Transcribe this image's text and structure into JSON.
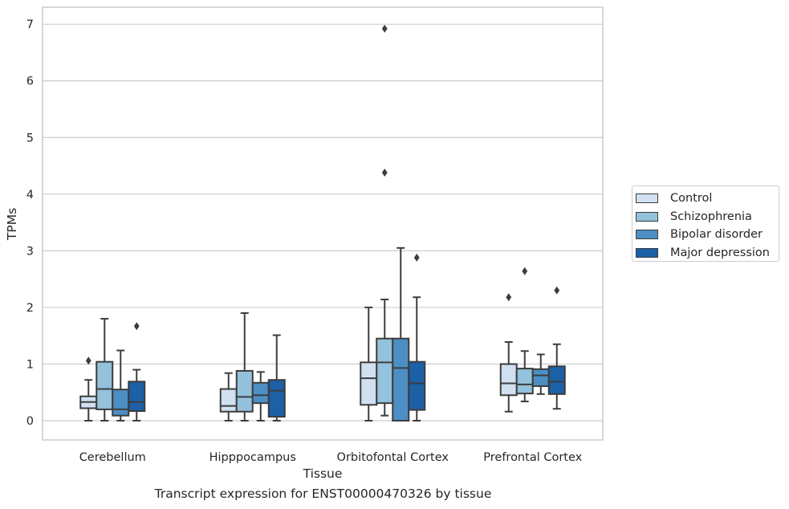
{
  "chart_data": {
    "type": "box",
    "title": "",
    "caption": "Transcript expression for ENST00000470326 by tissue",
    "xlabel": "Tissue",
    "ylabel": "TPMs",
    "ylim": [
      -0.34,
      7.3
    ],
    "yticks": [
      "0",
      "1",
      "2",
      "3",
      "4",
      "5",
      "6",
      "7"
    ],
    "grid": "horizontal",
    "legend_position": "right",
    "categories": [
      "Cerebellum",
      "Hipppocampus",
      "Orbitofontal Cortex",
      "Prefrontal Cortex"
    ],
    "series": [
      {
        "name": "Control",
        "color": "#d0e0f0",
        "boxes": [
          {
            "min": 0.0,
            "q1": 0.22,
            "median": 0.33,
            "q3": 0.43,
            "max": 0.72,
            "outliers": [
              1.06
            ]
          },
          {
            "min": 0.0,
            "q1": 0.16,
            "median": 0.26,
            "q3": 0.56,
            "max": 0.84,
            "outliers": []
          },
          {
            "min": 0.0,
            "q1": 0.28,
            "median": 0.75,
            "q3": 1.03,
            "max": 2.0,
            "outliers": []
          },
          {
            "min": 0.16,
            "q1": 0.45,
            "median": 0.66,
            "q3": 1.0,
            "max": 1.39,
            "outliers": [
              2.18
            ]
          }
        ]
      },
      {
        "name": "Schizophrenia",
        "color": "#94c1dc",
        "boxes": [
          {
            "min": 0.0,
            "q1": 0.2,
            "median": 0.56,
            "q3": 1.04,
            "max": 1.8,
            "outliers": []
          },
          {
            "min": 0.0,
            "q1": 0.16,
            "median": 0.42,
            "q3": 0.88,
            "max": 1.9,
            "outliers": []
          },
          {
            "min": 0.09,
            "q1": 0.31,
            "median": 1.03,
            "q3": 1.45,
            "max": 2.14,
            "outliers": [
              4.38,
              6.92
            ]
          },
          {
            "min": 0.34,
            "q1": 0.48,
            "median": 0.64,
            "q3": 0.92,
            "max": 1.23,
            "outliers": [
              2.64
            ]
          }
        ]
      },
      {
        "name": "Bipolar disorder",
        "color": "#4d8fc4",
        "boxes": [
          {
            "min": 0.0,
            "q1": 0.09,
            "median": 0.2,
            "q3": 0.55,
            "max": 1.24,
            "outliers": []
          },
          {
            "min": 0.0,
            "q1": 0.31,
            "median": 0.45,
            "q3": 0.67,
            "max": 0.86,
            "outliers": []
          },
          {
            "min": 0.0,
            "q1": 0.0,
            "median": 0.93,
            "q3": 1.45,
            "max": 3.05,
            "outliers": []
          },
          {
            "min": 0.47,
            "q1": 0.61,
            "median": 0.8,
            "q3": 0.91,
            "max": 1.17,
            "outliers": []
          }
        ]
      },
      {
        "name": "Major depression",
        "color": "#1c60a5",
        "boxes": [
          {
            "min": 0.0,
            "q1": 0.17,
            "median": 0.33,
            "q3": 0.69,
            "max": 0.9,
            "outliers": [
              1.67
            ]
          },
          {
            "min": 0.0,
            "q1": 0.07,
            "median": 0.53,
            "q3": 0.72,
            "max": 1.51,
            "outliers": []
          },
          {
            "min": 0.0,
            "q1": 0.19,
            "median": 0.66,
            "q3": 1.04,
            "max": 2.18,
            "outliers": [
              2.88
            ]
          },
          {
            "min": 0.21,
            "q1": 0.47,
            "median": 0.69,
            "q3": 0.96,
            "max": 1.35,
            "outliers": [
              2.3
            ]
          }
        ]
      }
    ]
  }
}
